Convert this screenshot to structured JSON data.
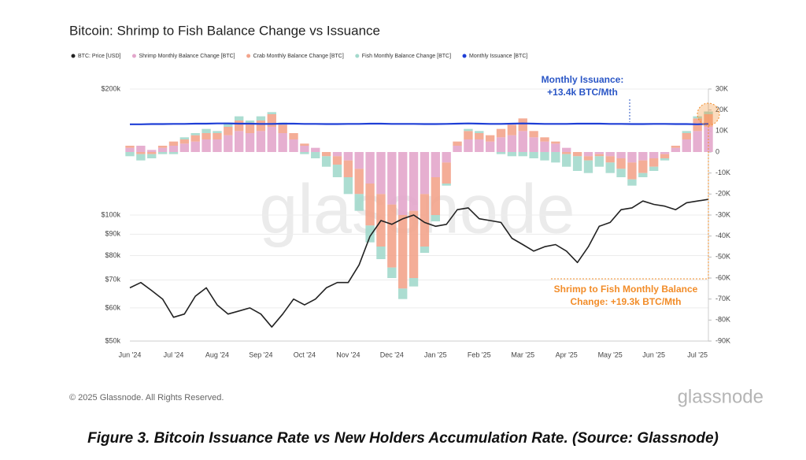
{
  "chart_data": {
    "type": "combo",
    "title": "Bitcoin: Shrimp to Fish Balance Change vs Issuance",
    "watermark": "glassnode",
    "categories": [
      "Jun '24",
      null,
      null,
      null,
      "Jul '24",
      null,
      null,
      null,
      "Aug '24",
      null,
      null,
      null,
      "Sep '24",
      null,
      null,
      null,
      "Oct '24",
      null,
      null,
      null,
      "Nov '24",
      null,
      null,
      null,
      "Dec '24",
      null,
      null,
      null,
      "Jan '25",
      null,
      null,
      null,
      "Feb '25",
      null,
      null,
      null,
      "Mar '25",
      null,
      null,
      null,
      "Apr '25",
      null,
      null,
      null,
      "May '25",
      null,
      null,
      null,
      "Jun '25",
      null,
      null,
      null,
      "Jul '25",
      null
    ],
    "y_scale": "log",
    "ylim": [
      50000,
      200000
    ],
    "yticks": [
      {
        "value": 50000,
        "label": "$50k"
      },
      {
        "value": 60000,
        "label": "$60k"
      },
      {
        "value": 70000,
        "label": "$70k"
      },
      {
        "value": 80000,
        "label": "$80k"
      },
      {
        "value": 90000,
        "label": "$90k"
      },
      {
        "value": 100000,
        "label": "$100k"
      },
      {
        "value": 200000,
        "label": "$200k"
      }
    ],
    "y2lim": [
      -90000,
      30000
    ],
    "y2ticks": [
      {
        "value": 30000,
        "label": "30K"
      },
      {
        "value": 20000,
        "label": "20K"
      },
      {
        "value": 10000,
        "label": "10K"
      },
      0,
      {
        "value": -10000,
        "label": "-10K"
      },
      {
        "value": -20000,
        "label": "-20K"
      },
      {
        "value": -30000,
        "label": "-30K"
      },
      {
        "value": -40000,
        "label": "-40K"
      },
      {
        "value": -50000,
        "label": "-50K"
      },
      {
        "value": -60000,
        "label": "-60K"
      },
      {
        "value": -70000,
        "label": "-70K"
      },
      {
        "value": -80000,
        "label": "-80K"
      },
      {
        "value": -90000,
        "label": "-90K"
      }
    ],
    "grid": true,
    "legend": "top-left",
    "series": [
      {
        "name": "BTC: Price [USD]",
        "type": "line",
        "axis": "y",
        "color": "#222222",
        "values": [
          67000,
          69000,
          66000,
          63000,
          57000,
          58000,
          64000,
          67000,
          61000,
          58000,
          59000,
          60000,
          58000,
          54000,
          58000,
          63000,
          61000,
          63000,
          67000,
          69000,
          69000,
          76000,
          89000,
          97000,
          95000,
          98000,
          100000,
          96000,
          94000,
          95000,
          103000,
          104000,
          98000,
          97000,
          96000,
          88000,
          85000,
          82000,
          84000,
          85000,
          82000,
          77000,
          84000,
          94000,
          96000,
          103000,
          104000,
          108000,
          106000,
          105000,
          103000,
          107000,
          108000,
          109000
        ]
      },
      {
        "name": "Shrimp Monthly Balance Change [BTC]",
        "type": "bar",
        "axis": "y2",
        "color": "#e3a6cb",
        "values": [
          2000,
          3000,
          1000,
          2000,
          3000,
          4000,
          5000,
          6000,
          6000,
          8000,
          10000,
          9000,
          10000,
          12000,
          9000,
          6000,
          3000,
          2000,
          0,
          -2000,
          -4000,
          -8000,
          -15000,
          -20000,
          -25000,
          -30000,
          -28000,
          -20000,
          -12000,
          -5000,
          3000,
          6000,
          6000,
          5000,
          7000,
          8000,
          10000,
          7000,
          5000,
          4000,
          2000,
          0,
          -2000,
          -1000,
          -2000,
          -3000,
          -5000,
          -4000,
          -3000,
          -1000,
          2000,
          6000,
          10000,
          12000
        ]
      },
      {
        "name": "Crab Monthly Balance Change [BTC]",
        "type": "bar",
        "axis": "y2",
        "color": "#f3a48c",
        "values": [
          1000,
          -1000,
          -1000,
          1000,
          2000,
          2000,
          3000,
          3000,
          3000,
          4000,
          5000,
          5000,
          5000,
          6000,
          4000,
          3000,
          1000,
          0,
          -2000,
          -4000,
          -8000,
          -12000,
          -20000,
          -25000,
          -30000,
          -35000,
          -32000,
          -25000,
          -18000,
          -10000,
          2000,
          4000,
          3000,
          3000,
          4000,
          5000,
          6000,
          3000,
          2000,
          1000,
          -1000,
          -2000,
          -2000,
          -1000,
          -3000,
          -5000,
          -8000,
          -6000,
          -4000,
          -2000,
          1000,
          3000,
          6000,
          6000
        ]
      },
      {
        "name": "Fish Monthly Balance Change [BTC]",
        "type": "bar",
        "axis": "y2",
        "color": "#a3d9cc",
        "values": [
          -2000,
          -3000,
          -2000,
          -1000,
          -1000,
          1000,
          1000,
          2000,
          1000,
          2000,
          2000,
          1000,
          2000,
          1000,
          1000,
          0,
          -1000,
          -3000,
          -5000,
          -6000,
          -8000,
          -8000,
          -8000,
          -6000,
          -5000,
          -5000,
          -4000,
          -3000,
          -3000,
          -1000,
          0,
          1000,
          1000,
          0,
          -1000,
          -2000,
          -2000,
          -3000,
          -4000,
          -5000,
          -6000,
          -7000,
          -6000,
          -5000,
          -5000,
          -4000,
          -3000,
          -2000,
          -2000,
          -1000,
          0,
          1000,
          1000,
          1300
        ]
      },
      {
        "name": "Monthly Issuance [BTC]",
        "type": "line",
        "axis": "y2",
        "color": "#1f3fd6",
        "values": [
          13200,
          13200,
          13300,
          13300,
          13400,
          13400,
          13500,
          13500,
          13600,
          13600,
          13500,
          13500,
          13400,
          13400,
          13500,
          13500,
          13400,
          13400,
          13300,
          13300,
          13400,
          13400,
          13500,
          13500,
          13400,
          13400,
          13400,
          13300,
          13300,
          13400,
          13500,
          13600,
          13500,
          13400,
          13400,
          13500,
          13600,
          13500,
          13400,
          13400,
          13400,
          13500,
          13500,
          13500,
          13400,
          13400,
          13300,
          13300,
          13400,
          13400,
          13300,
          13300,
          13200,
          13400
        ]
      }
    ],
    "annotations": [
      {
        "lines": [
          "Monthly Issuance:",
          "+13.4k BTC/Mth"
        ],
        "color": "#2a56c6"
      },
      {
        "lines": [
          "Shrimp to Fish Monthly Balance",
          "Change: +19.3k BTC/Mth"
        ],
        "color": "#f28c28"
      }
    ]
  },
  "footer": {
    "copyright": "© 2025 Glassnode. All Rights Reserved.",
    "logo": "glassnode"
  },
  "caption": "Figure 3.  Bitcoin Issuance Rate vs New Holders Accumulation Rate. (Source: Glassnode)"
}
